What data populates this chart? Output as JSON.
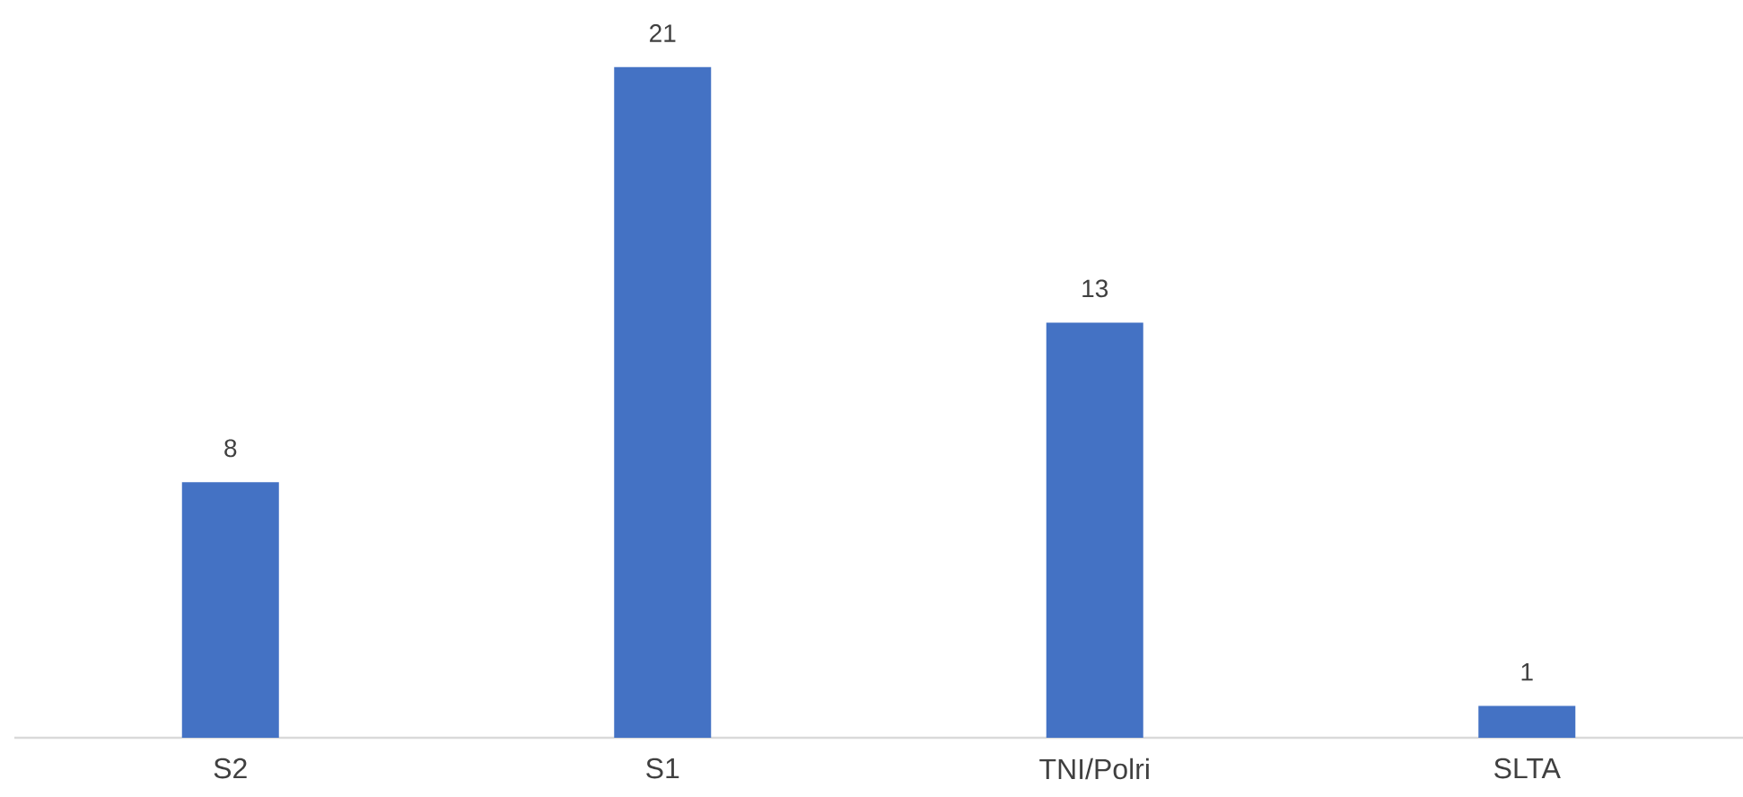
{
  "chart_data": {
    "type": "bar",
    "categories": [
      "S2",
      "S1",
      "TNI/Polri",
      "SLTA"
    ],
    "values": [
      8,
      21,
      13,
      1
    ],
    "color": "#4472c4",
    "data_labels": true
  }
}
